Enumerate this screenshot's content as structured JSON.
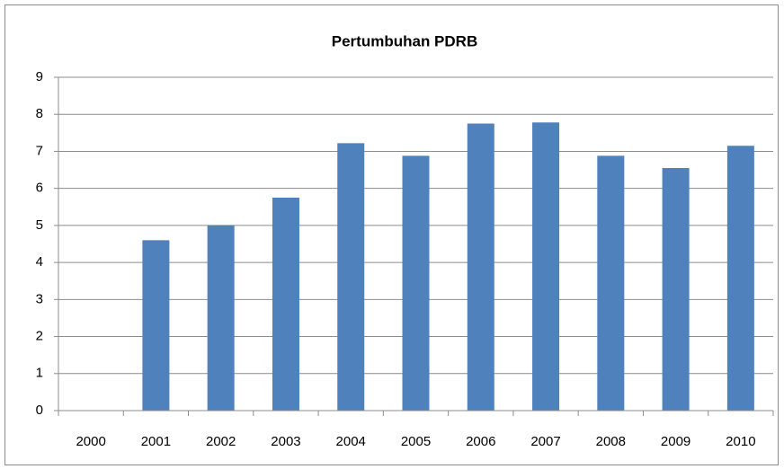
{
  "chart_data": {
    "type": "bar",
    "title": "Pertumbuhan PDRB",
    "categories": [
      "2000",
      "2001",
      "2002",
      "2003",
      "2004",
      "2005",
      "2006",
      "2007",
      "2008",
      "2009",
      "2010"
    ],
    "values": [
      null,
      4.6,
      5.0,
      5.75,
      7.22,
      6.88,
      7.75,
      7.78,
      6.88,
      6.55,
      7.15
    ],
    "color": "#4f81bd",
    "ylim": [
      0,
      9
    ],
    "yticks": [
      0,
      1,
      2,
      3,
      4,
      5,
      6,
      7,
      8,
      9
    ],
    "grid": true
  }
}
